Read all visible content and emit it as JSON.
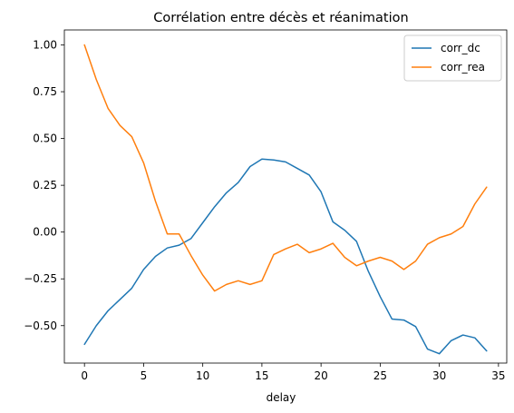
{
  "chart_data": {
    "type": "line",
    "title": "Corrélation entre décès et réanimation",
    "xlabel": "delay",
    "ylabel": "",
    "xlim": [
      -1.7,
      35.7
    ],
    "ylim": [
      -0.7,
      1.08
    ],
    "x_ticks": [
      0,
      5,
      10,
      15,
      20,
      25,
      30,
      35
    ],
    "x_tick_labels": [
      "0",
      "5",
      "10",
      "15",
      "20",
      "25",
      "30",
      "35"
    ],
    "y_ticks": [
      -0.5,
      -0.25,
      0.0,
      0.25,
      0.5,
      0.75,
      1.0
    ],
    "y_tick_labels": [
      "−0.50",
      "−0.25",
      "0.00",
      "0.25",
      "0.50",
      "0.75",
      "1.00"
    ],
    "grid": false,
    "legend_position": "top-right",
    "x": [
      0,
      1,
      2,
      3,
      4,
      5,
      6,
      7,
      8,
      9,
      10,
      11,
      12,
      13,
      14,
      15,
      16,
      17,
      18,
      19,
      20,
      21,
      22,
      23,
      24,
      25,
      26,
      27,
      28,
      29,
      30,
      31,
      32,
      33,
      34
    ],
    "series": [
      {
        "name": "corr_dc",
        "color": "#1f77b4",
        "values": [
          -0.6,
          -0.5,
          -0.42,
          -0.36,
          -0.3,
          -0.2,
          -0.13,
          -0.085,
          -0.07,
          -0.035,
          0.05,
          0.135,
          0.21,
          0.265,
          0.35,
          0.39,
          0.385,
          0.375,
          0.34,
          0.305,
          0.215,
          0.055,
          0.01,
          -0.05,
          -0.21,
          -0.345,
          -0.465,
          -0.47,
          -0.505,
          -0.625,
          -0.65,
          -0.58,
          -0.55,
          -0.565,
          -0.635
        ]
      },
      {
        "name": "corr_rea",
        "color": "#ff7f0e",
        "values": [
          1.0,
          0.815,
          0.66,
          0.57,
          0.51,
          0.37,
          0.165,
          -0.01,
          -0.01,
          -0.125,
          -0.23,
          -0.315,
          -0.28,
          -0.26,
          -0.28,
          -0.26,
          -0.12,
          -0.09,
          -0.065,
          -0.11,
          -0.09,
          -0.06,
          -0.135,
          -0.18,
          -0.155,
          -0.135,
          -0.155,
          -0.2,
          -0.155,
          -0.065,
          -0.03,
          -0.01,
          0.03,
          0.15,
          0.24
        ]
      }
    ]
  }
}
